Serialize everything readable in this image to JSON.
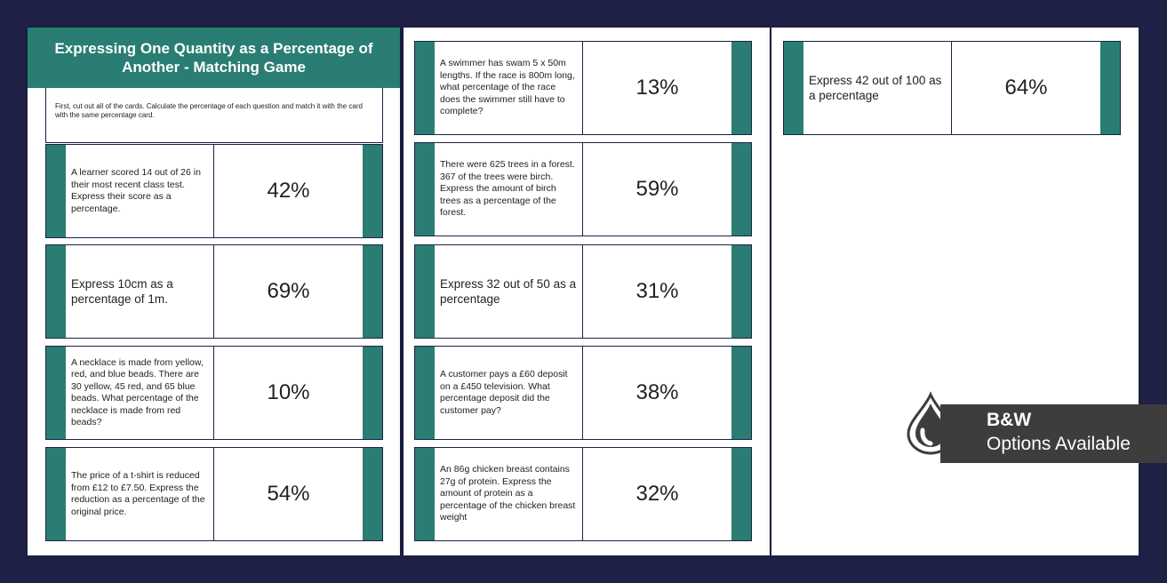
{
  "header": {
    "title": "Expressing One Quantity as a Percentage of Another - Matching Game",
    "instructions": "First, cut out all of the cards. Calculate the percentage of each question and match it with the card with the same percentage card."
  },
  "pages": [
    {
      "cards": [
        {
          "question": "A learner scored 14 out of 26 in their most recent class test. Express their score as a percentage.",
          "answer": "42%"
        },
        {
          "question": "Express 10cm as a percentage of 1m.",
          "answer": "69%"
        },
        {
          "question": "A necklace is made from yellow, red, and blue beads. There are 30 yellow, 45 red, and 65 blue beads. What percentage of the necklace is made from red beads?",
          "answer": "10%"
        },
        {
          "question": "The price of a t-shirt is reduced from £12 to £7.50. Express the reduction as a percentage of the original price.",
          "answer": "54%"
        }
      ]
    },
    {
      "cards": [
        {
          "question": "A swimmer has swam 5 x 50m lengths. If the race is 800m long, what percentage of the race does the swimmer still have to complete?",
          "answer": "13%"
        },
        {
          "question": "There were 625 trees in a forest. 367 of the trees were birch. Express the amount of birch trees as a percentage of the forest.",
          "answer": "59%"
        },
        {
          "question": "Express 32 out of 50 as a percentage",
          "answer": "31%"
        },
        {
          "question": "A customer pays a £60 deposit on a £450 television. What percentage deposit did the customer pay?",
          "answer": "38%"
        },
        {
          "question": "An 86g chicken breast contains 27g of protein. Express the amount of protein as a percentage of the chicken breast weight",
          "answer": "32%"
        }
      ]
    },
    {
      "cards": [
        {
          "question": "Express 42 out of 100 as a percentage",
          "answer": "64%"
        }
      ]
    }
  ],
  "badge": {
    "title": "B&W",
    "subtitle": "Options Available"
  }
}
